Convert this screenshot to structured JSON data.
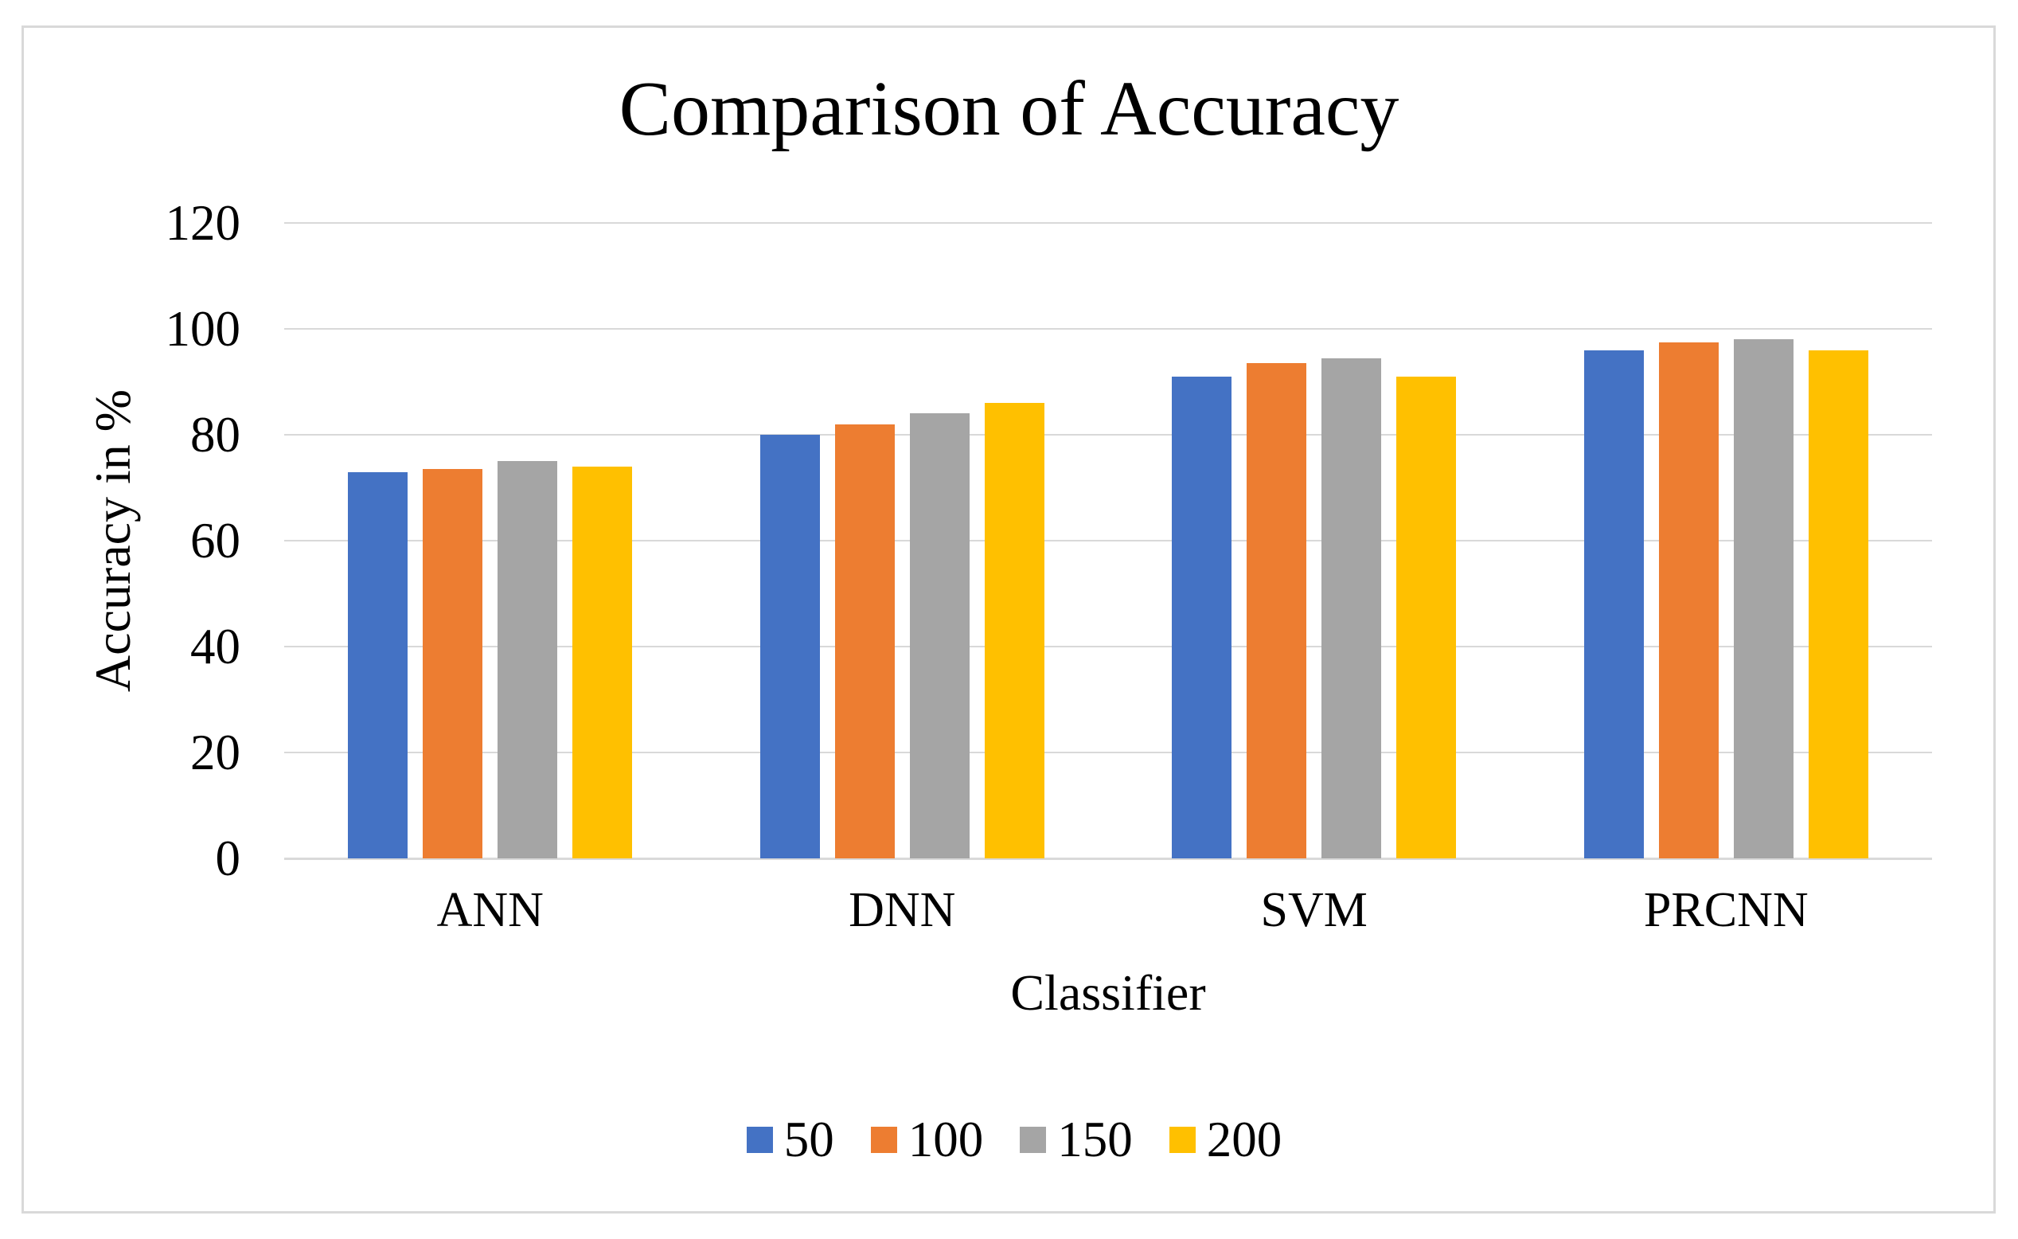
{
  "chart_data": {
    "type": "bar",
    "title": "Comparison of Accuracy",
    "xlabel": "Classifier",
    "ylabel": "Accuracy in %",
    "categories": [
      "ANN",
      "DNN",
      "SVM",
      "PRCNN"
    ],
    "series": [
      {
        "name": "50",
        "color": "#4472C4",
        "values": [
          73,
          80,
          91,
          96
        ]
      },
      {
        "name": "100",
        "color": "#ED7D31",
        "values": [
          73.5,
          82,
          93.5,
          97.5
        ]
      },
      {
        "name": "150",
        "color": "#A5A5A5",
        "values": [
          75,
          84,
          94.5,
          98
        ]
      },
      {
        "name": "200",
        "color": "#FFC000",
        "values": [
          74,
          86,
          91,
          96
        ]
      }
    ],
    "ylim": [
      0,
      120
    ],
    "yticks": [
      0,
      20,
      40,
      60,
      80,
      100,
      120
    ],
    "grid": true,
    "legend_position": "bottom",
    "gridline_color": "#D9D9D9",
    "axis_line_color": "#D9D9D9",
    "background_color": "#FFFFFF",
    "border_color": "#D9D9D9",
    "text_color": "#000000"
  }
}
